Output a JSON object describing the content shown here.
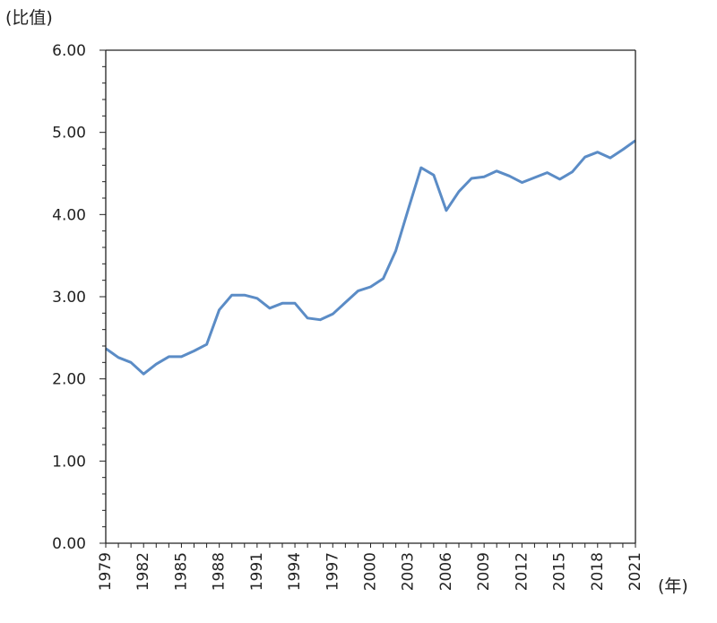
{
  "chart_data": {
    "type": "line",
    "title": "",
    "ylabel": "(比值)",
    "xlabel": "(年)",
    "ylim": [
      0,
      6
    ],
    "yticks": [
      "0.00",
      "1.00",
      "2.00",
      "3.00",
      "4.00",
      "5.00",
      "6.00"
    ],
    "ytick_values": [
      0,
      1,
      2,
      3,
      4,
      5,
      6
    ],
    "xlim": [
      1979,
      2021
    ],
    "xtick_labels": [
      "1979",
      "1982",
      "1985",
      "1988",
      "1991",
      "1994",
      "1997",
      "2000",
      "2003",
      "2006",
      "2009",
      "2012",
      "2015",
      "2018",
      "2021"
    ],
    "grid": false,
    "line_color": "#5b8cc6",
    "series": [
      {
        "name": "比值",
        "x": [
          1979,
          1980,
          1981,
          1982,
          1983,
          1984,
          1985,
          1986,
          1987,
          1988,
          1989,
          1990,
          1991,
          1992,
          1993,
          1994,
          1995,
          1996,
          1997,
          1998,
          1999,
          2000,
          2001,
          2002,
          2003,
          2004,
          2005,
          2006,
          2007,
          2008,
          2009,
          2010,
          2011,
          2012,
          2013,
          2014,
          2015,
          2016,
          2017,
          2018,
          2019,
          2020,
          2021
        ],
        "values": [
          2.37,
          2.26,
          2.2,
          2.06,
          2.18,
          2.27,
          2.27,
          2.34,
          2.42,
          2.84,
          3.02,
          3.02,
          2.98,
          2.86,
          2.92,
          2.92,
          2.74,
          2.72,
          2.79,
          2.93,
          3.07,
          3.12,
          3.22,
          3.56,
          4.07,
          4.57,
          4.48,
          4.05,
          4.28,
          4.44,
          4.46,
          4.53,
          4.47,
          4.39,
          4.45,
          4.51,
          4.43,
          4.52,
          4.7,
          4.76,
          4.69,
          4.79,
          4.9
        ]
      }
    ]
  }
}
